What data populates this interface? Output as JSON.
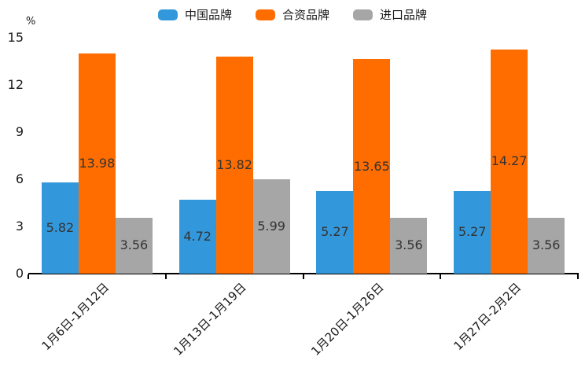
{
  "chart_data": {
    "type": "bar",
    "title": "",
    "y_axis_unit": "%",
    "categories": [
      "1月6日-1月12日",
      "1月13日-1月19日",
      "1月20日-1月26日",
      "1月27日-2月2日"
    ],
    "series": [
      {
        "name": "中国品牌",
        "color": "#3398DB",
        "values": [
          5.82,
          4.72,
          5.27,
          5.27
        ]
      },
      {
        "name": "合资品牌",
        "color": "#FF6D00",
        "values": [
          13.98,
          13.82,
          13.65,
          14.27
        ]
      },
      {
        "name": "进口品牌",
        "color": "#A6A6A6",
        "values": [
          3.56,
          5.99,
          3.56,
          3.56
        ]
      }
    ],
    "y_axis": {
      "min": 0,
      "max": 15,
      "tick_step": 3,
      "ticks": [
        0,
        3,
        6,
        9,
        12,
        15
      ]
    },
    "legend_position": "top",
    "grid": false,
    "value_label_position": "inside-center",
    "value_label_color": "#333333",
    "axis_color": "#000000",
    "text_color": "#1a1a1a"
  }
}
